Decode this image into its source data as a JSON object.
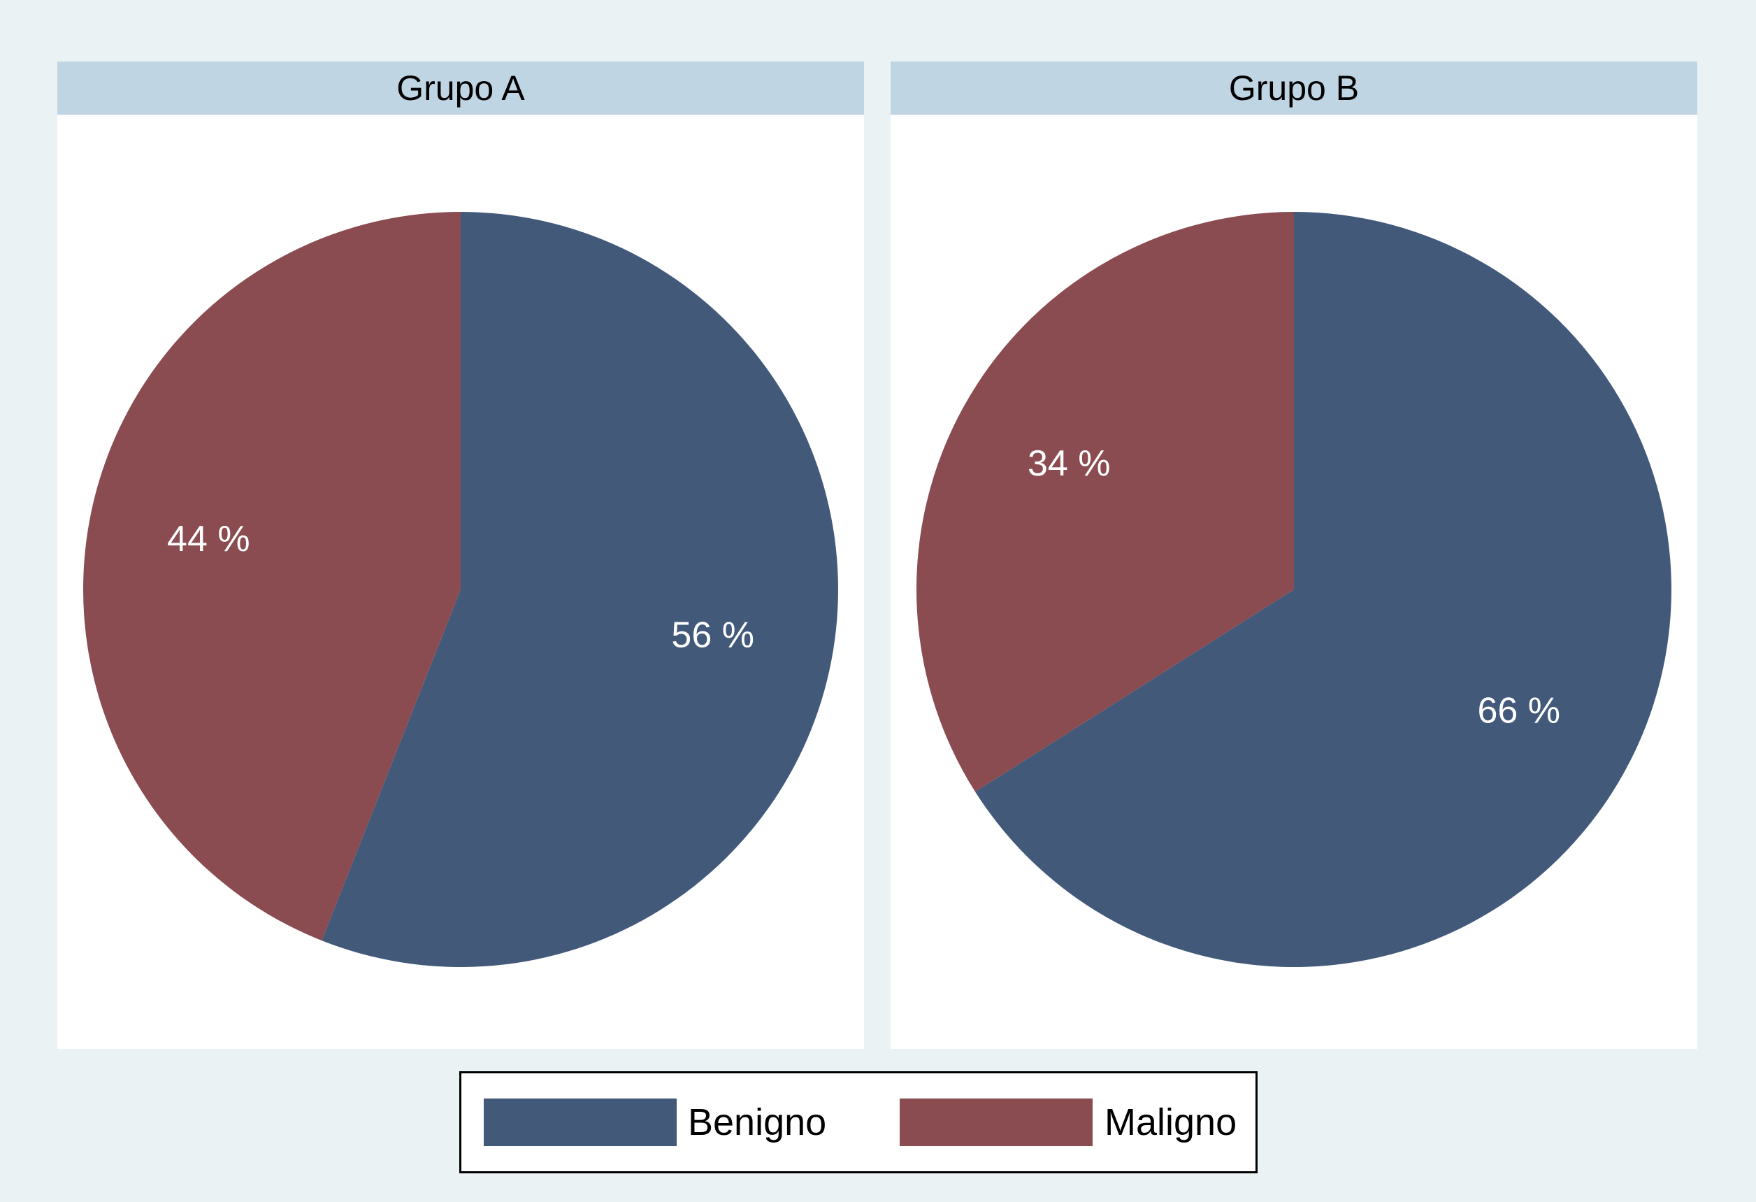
{
  "chart_data": {
    "type": "pie",
    "legend": {
      "position": "bottom",
      "items": [
        {
          "label": "Benigno",
          "color": "#43597a"
        },
        {
          "label": "Maligno",
          "color": "#8a4c51"
        }
      ]
    },
    "charts": [
      {
        "title": "Grupo A",
        "slices": [
          {
            "label": "Benigno",
            "value": 56,
            "text": "56 %",
            "color": "#43597a"
          },
          {
            "label": "Maligno",
            "value": 44,
            "text": "44 %",
            "color": "#8a4c51"
          }
        ]
      },
      {
        "title": "Grupo B",
        "slices": [
          {
            "label": "Benigno",
            "value": 66,
            "text": "66 %",
            "color": "#43597a"
          },
          {
            "label": "Maligno",
            "value": 34,
            "text": "34 %",
            "color": "#8a4c51"
          }
        ]
      }
    ]
  }
}
